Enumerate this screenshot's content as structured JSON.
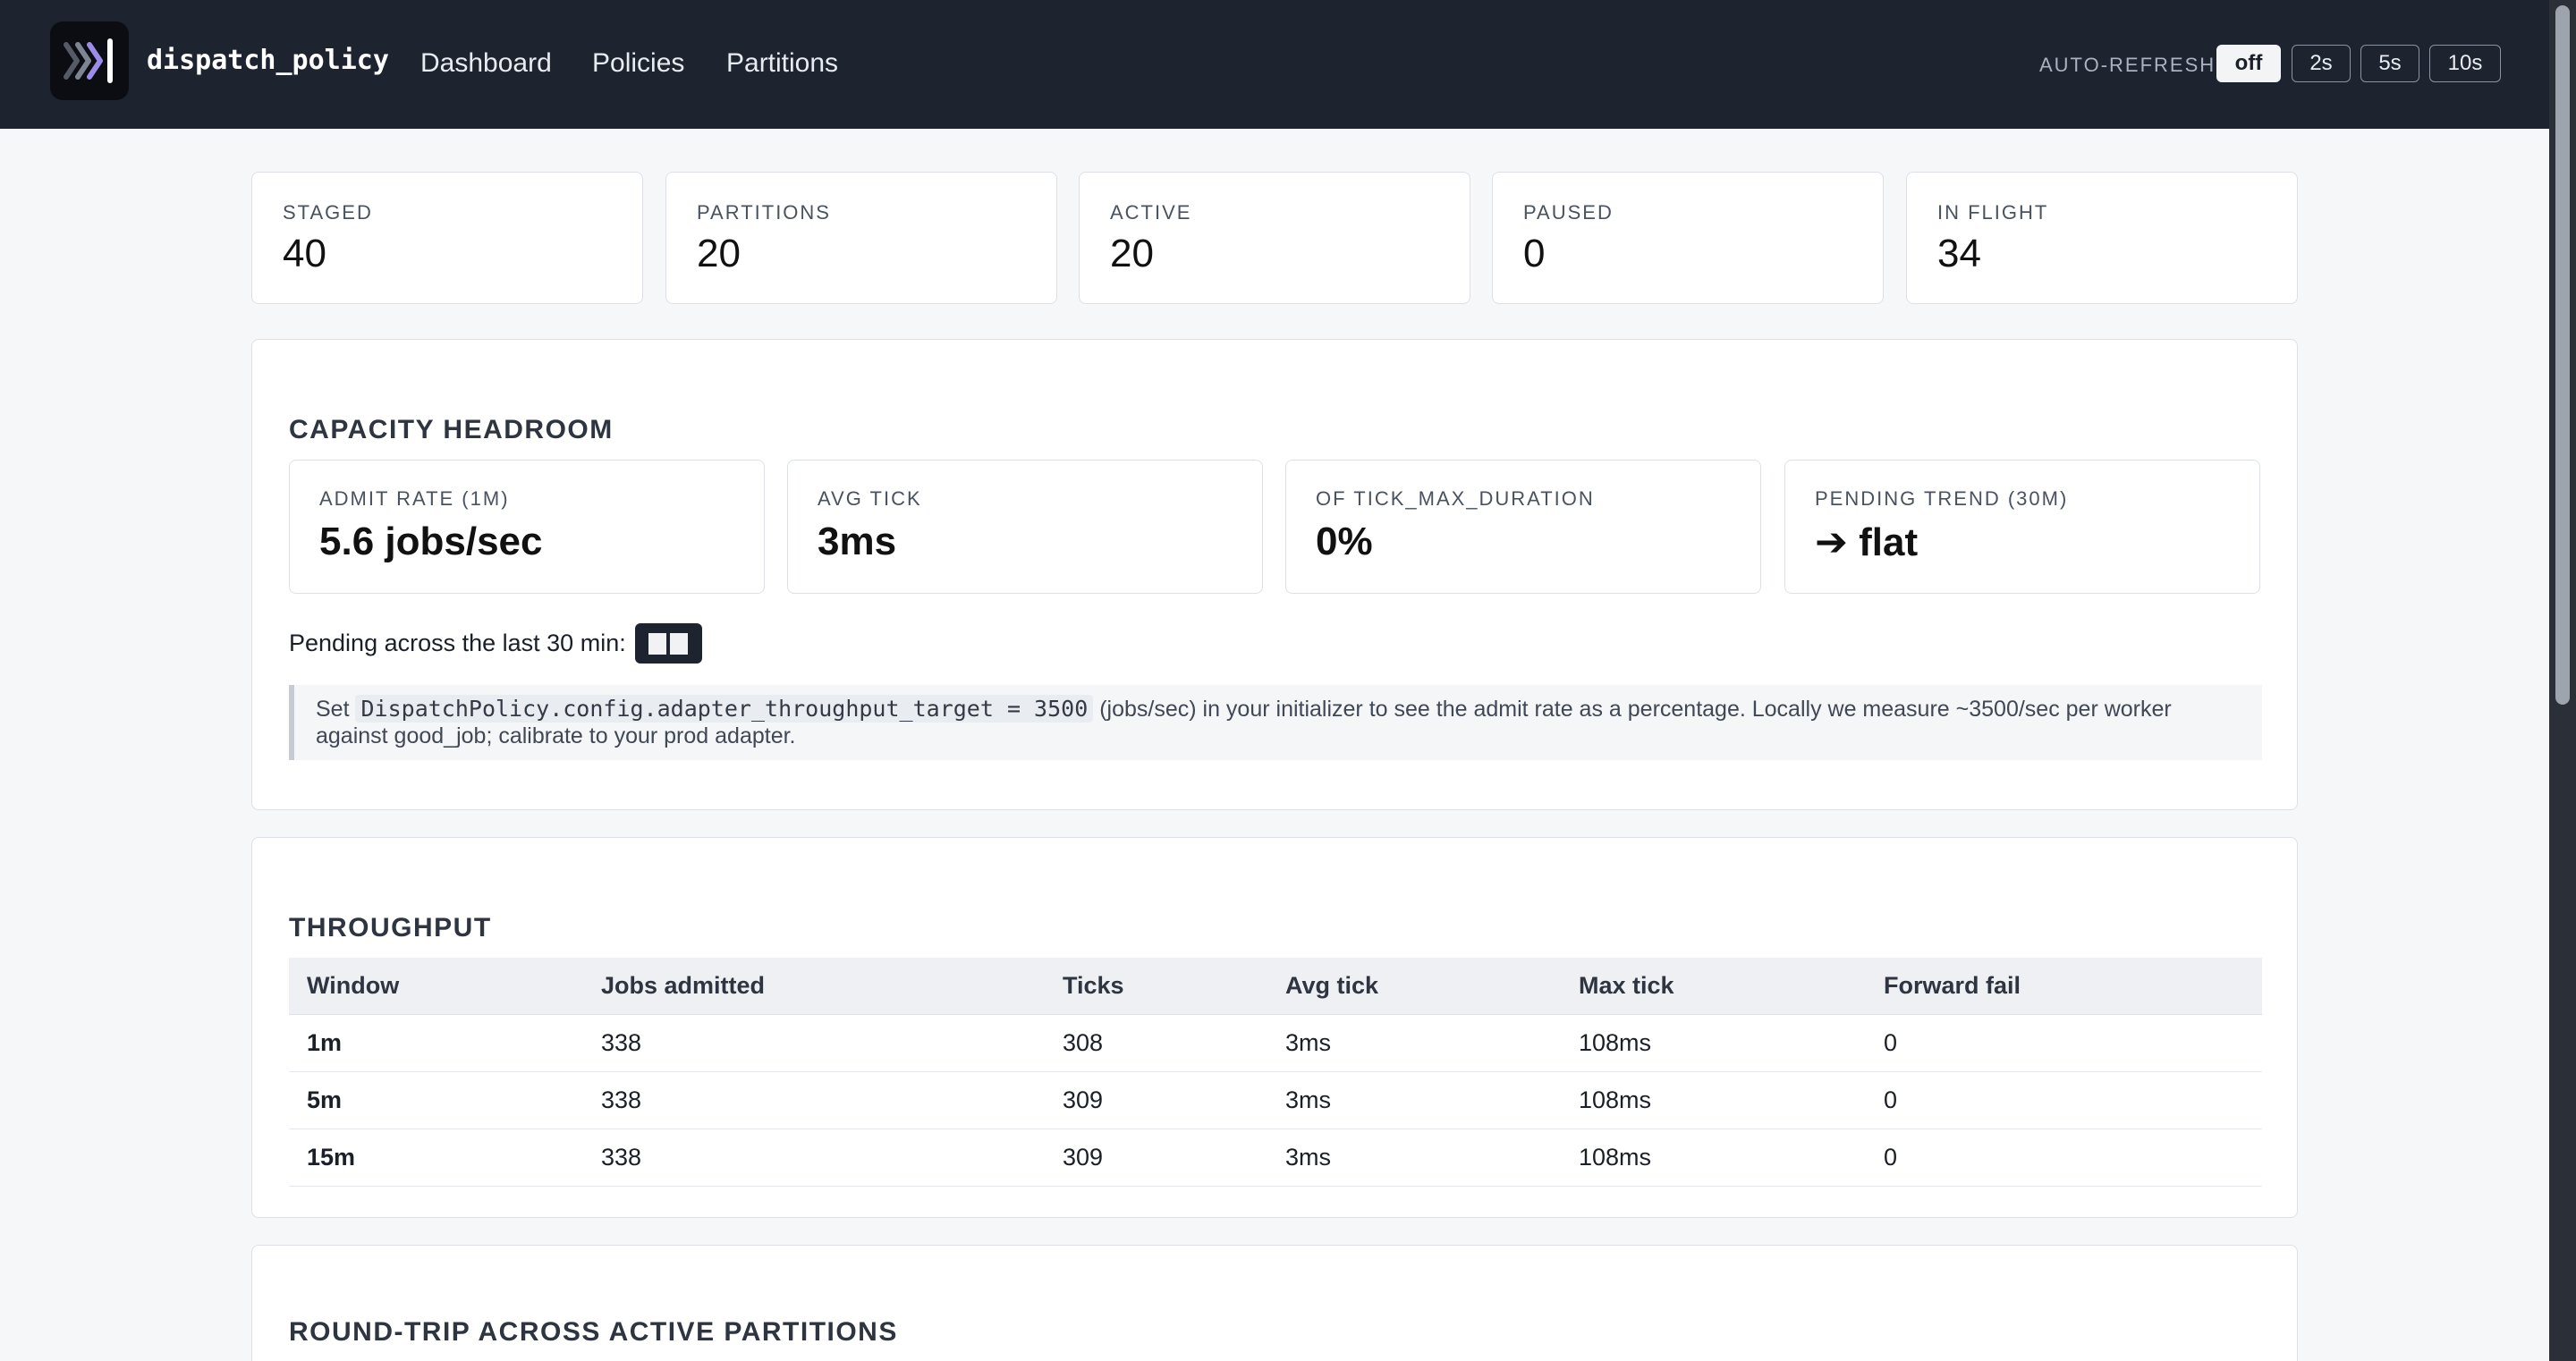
{
  "header": {
    "brand": "dispatch_policy",
    "nav": [
      "Dashboard",
      "Policies",
      "Partitions"
    ],
    "auto_refresh": {
      "label": "AUTO-REFRESH",
      "options": [
        "off",
        "2s",
        "5s",
        "10s"
      ],
      "selected": "off"
    }
  },
  "stats": [
    {
      "label": "STAGED",
      "value": "40"
    },
    {
      "label": "PARTITIONS",
      "value": "20"
    },
    {
      "label": "ACTIVE",
      "value": "20"
    },
    {
      "label": "PAUSED",
      "value": "0"
    },
    {
      "label": "IN FLIGHT",
      "value": "34"
    }
  ],
  "capacity": {
    "title": "CAPACITY HEADROOM",
    "metrics": [
      {
        "label": "ADMIT RATE (1M)",
        "value": "5.6 jobs/sec"
      },
      {
        "label": "AVG TICK",
        "value": "3ms"
      },
      {
        "label": "OF TICK_MAX_DURATION",
        "value": "0%"
      },
      {
        "label": "PENDING TREND (30M)",
        "value": "➔ flat"
      }
    ],
    "pending_label": "Pending across the last 30 min:",
    "hint_prefix": "Set",
    "hint_code": "DispatchPolicy.config.adapter_throughput_target = 3500",
    "hint_suffix": "(jobs/sec) in your initializer to see the admit rate as a percentage. Locally we measure ~3500/sec per worker against good_job; calibrate to your prod adapter."
  },
  "throughput": {
    "title": "THROUGHPUT",
    "columns": [
      "Window",
      "Jobs admitted",
      "Ticks",
      "Avg tick",
      "Max tick",
      "Forward fail"
    ],
    "rows": [
      [
        "1m",
        "338",
        "308",
        "3ms",
        "108ms",
        "0"
      ],
      [
        "5m",
        "338",
        "309",
        "3ms",
        "108ms",
        "0"
      ],
      [
        "15m",
        "338",
        "309",
        "3ms",
        "108ms",
        "0"
      ]
    ]
  },
  "roundtrip": {
    "title": "ROUND-TRIP ACROSS ACTIVE PARTITIONS"
  },
  "icons": {
    "logo": "chevrons-bar-logo"
  }
}
